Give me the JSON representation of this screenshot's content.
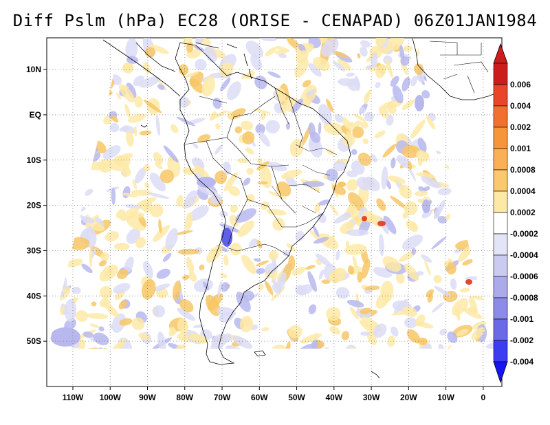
{
  "title": "Diff Pslm (hPa) EC28 (ORISE - CENAPAD) 06Z01JAN1984",
  "map": {
    "lon_range": [
      -117,
      5
    ],
    "lat_range": [
      -60,
      17
    ],
    "projection": "latitude-longitude",
    "grid": "dotted",
    "domain_outline": "trapezoid",
    "lat_ticks": [
      {
        "value": 10,
        "label": "10N"
      },
      {
        "value": 0,
        "label": "EQ"
      },
      {
        "value": -10,
        "label": "10S"
      },
      {
        "value": -20,
        "label": "20S"
      },
      {
        "value": -30,
        "label": "30S"
      },
      {
        "value": -40,
        "label": "40S"
      },
      {
        "value": -50,
        "label": "50S"
      }
    ],
    "lon_ticks": [
      {
        "value": -110,
        "label": "110W"
      },
      {
        "value": -100,
        "label": "100W"
      },
      {
        "value": -90,
        "label": "90W"
      },
      {
        "value": -80,
        "label": "80W"
      },
      {
        "value": -70,
        "label": "70W"
      },
      {
        "value": -60,
        "label": "60W"
      },
      {
        "value": -50,
        "label": "50W"
      },
      {
        "value": -40,
        "label": "40W"
      },
      {
        "value": -30,
        "label": "30W"
      },
      {
        "value": -20,
        "label": "20W"
      },
      {
        "value": -10,
        "label": "10W"
      },
      {
        "value": 0,
        "label": "0"
      }
    ],
    "colors": {
      "land_outline": "#000000",
      "grid": "#808080",
      "positive_light": "#fde9a6",
      "positive_mid": "#f7c766",
      "positive_strong": "#e8452a",
      "negative_light": "#dcdcf6",
      "negative_mid": "#b8b8ee",
      "negative_strong": "#6060e6"
    }
  },
  "colorbar": {
    "orientation": "vertical",
    "levels": [
      {
        "label": "0.006",
        "color": "#cc1d1d"
      },
      {
        "label": "0.004",
        "color": "#e8452a"
      },
      {
        "label": "0.002",
        "color": "#f2702e"
      },
      {
        "label": "0.001",
        "color": "#f7953b"
      },
      {
        "label": "0.0008",
        "color": "#fab055"
      },
      {
        "label": "0.0004",
        "color": "#fcc86e"
      },
      {
        "label": "0.0002",
        "color": "#fde9a6"
      },
      {
        "label": "-0.0002",
        "color": "#ffffff"
      },
      {
        "label": "-0.0004",
        "color": "#e4e4f8"
      },
      {
        "label": "-0.0006",
        "color": "#cbcbf2"
      },
      {
        "label": "-0.0008",
        "color": "#ababec"
      },
      {
        "label": "-0.001",
        "color": "#8c8ce8"
      },
      {
        "label": "-0.002",
        "color": "#6a6ae6"
      },
      {
        "label": "-0.004",
        "color": "#3c3cf0"
      }
    ],
    "top_arrow_color": "#cc1d1d",
    "bottom_arrow_color": "#1414f5"
  }
}
